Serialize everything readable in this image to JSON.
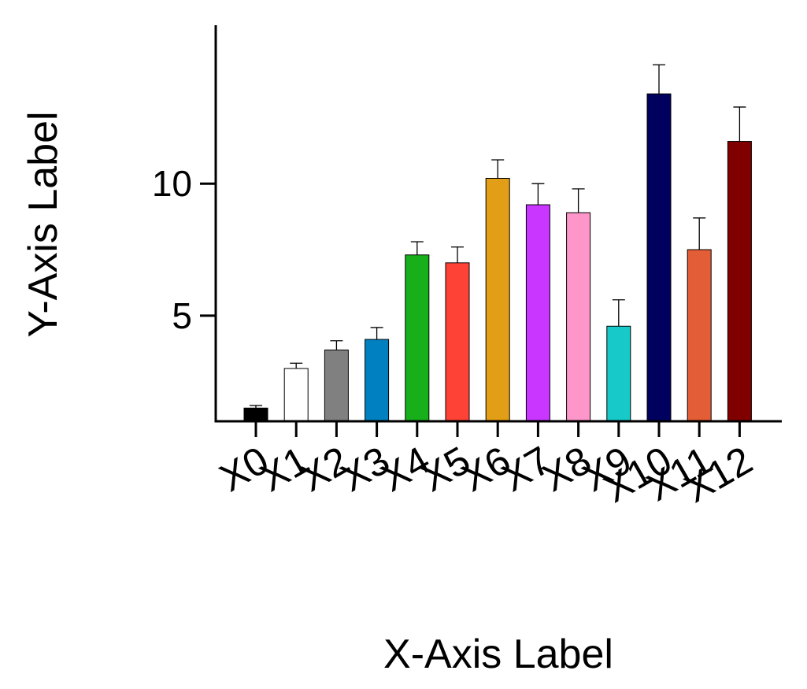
{
  "chart_data": {
    "type": "bar",
    "categories": [
      "X0",
      "X1",
      "X2",
      "X3",
      "X4",
      "X5",
      "X6",
      "X7",
      "X8",
      "X9",
      "X10",
      "X11",
      "X12"
    ],
    "values": [
      1.5,
      3.0,
      3.7,
      4.1,
      7.3,
      7.0,
      10.2,
      9.2,
      8.9,
      4.6,
      13.4,
      7.5,
      11.6
    ],
    "errors": [
      0.1,
      0.2,
      0.35,
      0.45,
      0.5,
      0.6,
      0.7,
      0.8,
      0.9,
      1.0,
      1.1,
      1.2,
      1.3
    ],
    "colors": [
      "#000000",
      "#ffffff",
      "#808080",
      "#0080c0",
      "#17b01b",
      "#ff4236",
      "#e39e17",
      "#c936ff",
      "#ff96c9",
      "#17c9c9",
      "#00005e",
      "#e35e36",
      "#800000"
    ],
    "xlabel": "X-Axis Label",
    "ylabel": "Y-Axis Label",
    "ylim": [
      1,
      16
    ],
    "yticks": [
      5,
      10
    ],
    "grid": false
  }
}
